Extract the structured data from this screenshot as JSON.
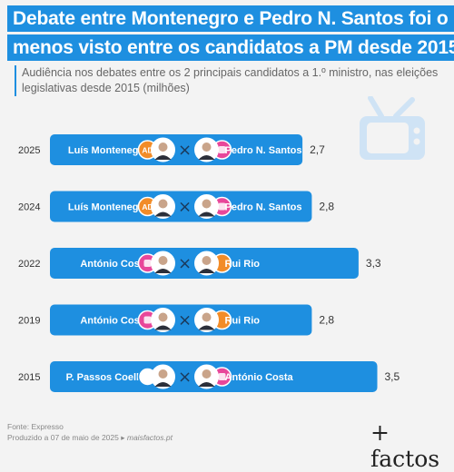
{
  "title_lines": [
    "Debate entre Montenegro e Pedro N. Santos foi o",
    "menos visto entre os candidatos a PM desde 2015"
  ],
  "subtitle": "Audiência nos debates entre os 2 principais candidatos a 1.º ministro, nas eleições legislativas desde 2015 (milhões)",
  "colors": {
    "bar": "#1e8fe0",
    "ad": "#f28c28",
    "ps": "#e8479a",
    "tv": "#cfe3f5"
  },
  "tv_icon": "tv-icon",
  "versus_symbol": "×",
  "chart_data": {
    "type": "bar",
    "orientation": "horizontal",
    "title": "Debate entre Montenegro e Pedro N. Santos foi o menos visto entre os candidatos a PM desde 2015",
    "categories": [
      "2025",
      "2024",
      "2022",
      "2019",
      "2015"
    ],
    "values": [
      2.7,
      2.8,
      3.3,
      2.8,
      3.5
    ],
    "value_labels": [
      "2,7",
      "2,8",
      "3,3",
      "2,8",
      "3,5"
    ],
    "rows": [
      {
        "left": "Luís Montenegro",
        "left_party": "ad",
        "right": "Pedro N. Santos",
        "right_party": "ps"
      },
      {
        "left": "Luís Montenegro",
        "left_party": "ad",
        "right": "Pedro N. Santos",
        "right_party": "ps"
      },
      {
        "left": "António Costa",
        "left_party": "ps",
        "right": "Rui Rio",
        "right_party": "psd"
      },
      {
        "left": "António Costa",
        "left_party": "ps",
        "right": "Rui Rio",
        "right_party": "psd"
      },
      {
        "left": "P. Passos Coelho",
        "left_party": "paf",
        "right": "António Costa",
        "right_party": "ps"
      }
    ],
    "party_badges": {
      "ad": "AD"
    },
    "xlim": [
      0,
      3.9
    ],
    "grid": false,
    "legend": "none"
  },
  "footer": {
    "source": "Fonte: Expresso",
    "produced": "Produzido a 07 de maio de 2025 ▸",
    "site": "maisfactos.pt"
  },
  "logo": "+ factos"
}
